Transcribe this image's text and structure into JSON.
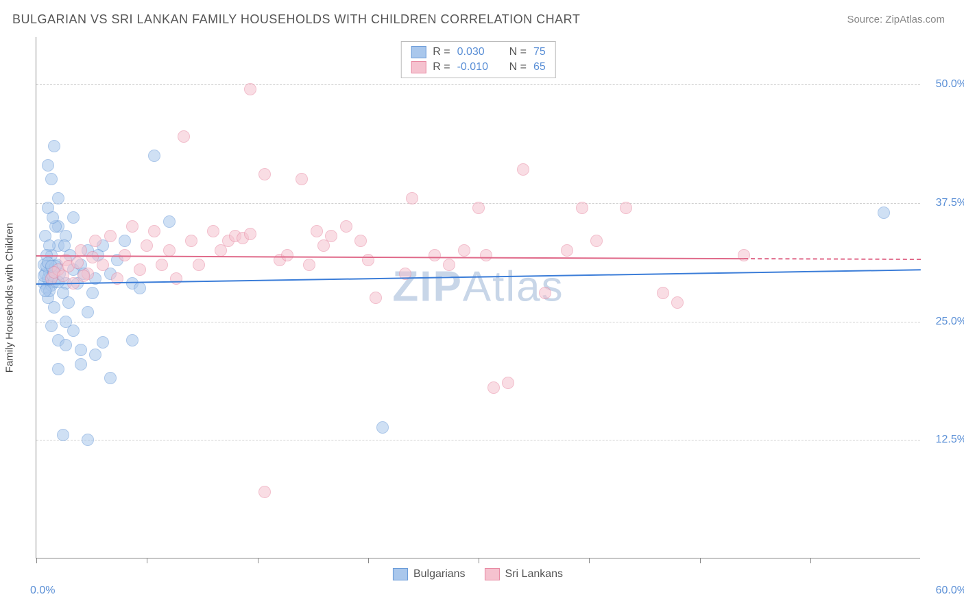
{
  "title": "BULGARIAN VS SRI LANKAN FAMILY HOUSEHOLDS WITH CHILDREN CORRELATION CHART",
  "source": "Source: ZipAtlas.com",
  "watermark_a": "ZIP",
  "watermark_b": "Atlas",
  "ylabel": "Family Households with Children",
  "chart": {
    "type": "scatter",
    "xlim": [
      0,
      60
    ],
    "ylim": [
      0,
      55
    ],
    "ytick_values": [
      12.5,
      25.0,
      37.5,
      50.0
    ],
    "ytick_labels": [
      "12.5%",
      "25.0%",
      "37.5%",
      "50.0%"
    ],
    "xtick_values": [
      0,
      7.5,
      15,
      22.5,
      30,
      37.5,
      45,
      52.5
    ],
    "xlabel_min": "0.0%",
    "xlabel_max": "60.0%",
    "grid_color": "#d0d0d0",
    "axis_color": "#888888",
    "background_color": "#ffffff",
    "tick_label_color": "#5a8fd6",
    "marker_radius": 9,
    "marker_opacity": 0.55,
    "series": [
      {
        "name": "Bulgarians",
        "color_fill": "#a9c7ec",
        "color_stroke": "#6a9bd8",
        "r_label": "R =",
        "r_value": "0.030",
        "n_label": "N =",
        "n_value": "75",
        "trend": {
          "x1": 0,
          "y1": 29.0,
          "x2": 60,
          "y2": 30.5,
          "color": "#3b7dd8"
        },
        "points": [
          [
            0.5,
            29
          ],
          [
            0.6,
            30
          ],
          [
            0.7,
            28.5
          ],
          [
            0.8,
            29.5
          ],
          [
            0.9,
            30.2
          ],
          [
            1.0,
            28.8
          ],
          [
            1.1,
            30.5
          ],
          [
            1.2,
            29.2
          ],
          [
            0.5,
            31
          ],
          [
            0.8,
            27.5
          ],
          [
            1.0,
            32
          ],
          [
            1.2,
            26.5
          ],
          [
            1.5,
            33
          ],
          [
            1.0,
            40
          ],
          [
            1.5,
            38
          ],
          [
            0.8,
            41.5
          ],
          [
            1.2,
            43.5
          ],
          [
            0.8,
            37
          ],
          [
            1.5,
            35
          ],
          [
            2.0,
            34
          ],
          [
            2.5,
            36
          ],
          [
            2.0,
            29
          ],
          [
            2.5,
            30.5
          ],
          [
            3.0,
            31
          ],
          [
            3.5,
            32.5
          ],
          [
            4.0,
            29.5
          ],
          [
            4.5,
            33
          ],
          [
            5.0,
            30
          ],
          [
            5.5,
            31.5
          ],
          [
            6.0,
            33.5
          ],
          [
            6.5,
            29
          ],
          [
            7.0,
            28.5
          ],
          [
            8.0,
            42.5
          ],
          [
            9.0,
            35.5
          ],
          [
            1.0,
            24.5
          ],
          [
            1.5,
            23
          ],
          [
            2.0,
            22.5
          ],
          [
            2.5,
            24
          ],
          [
            3.0,
            20.5
          ],
          [
            3.5,
            26
          ],
          [
            4.0,
            21.5
          ],
          [
            4.5,
            22.8
          ],
          [
            5.0,
            19
          ],
          [
            1.5,
            20
          ],
          [
            2.0,
            25
          ],
          [
            6.5,
            23
          ],
          [
            3.0,
            22
          ],
          [
            1.8,
            13
          ],
          [
            3.5,
            12.5
          ],
          [
            23.5,
            13.8
          ],
          [
            0.6,
            34
          ],
          [
            0.9,
            33
          ],
          [
            1.3,
            35
          ],
          [
            1.1,
            36
          ],
          [
            0.7,
            32
          ],
          [
            1.4,
            31
          ],
          [
            1.6,
            30
          ],
          [
            1.8,
            28
          ],
          [
            2.2,
            27
          ],
          [
            1.9,
            33
          ],
          [
            2.3,
            32
          ],
          [
            2.8,
            29
          ],
          [
            3.2,
            30
          ],
          [
            3.8,
            28
          ],
          [
            4.2,
            32
          ],
          [
            0.5,
            29.8
          ],
          [
            0.7,
            30.8
          ],
          [
            0.9,
            28.2
          ],
          [
            1.1,
            29.8
          ],
          [
            1.3,
            30.8
          ],
          [
            1.5,
            29.2
          ],
          [
            0.6,
            28.2
          ],
          [
            0.8,
            31.2
          ],
          [
            1.0,
            30.8
          ],
          [
            57.5,
            36.5
          ]
        ]
      },
      {
        "name": "Sri Lankans",
        "color_fill": "#f5c2cf",
        "color_stroke": "#e88aa3",
        "r_label": "R =",
        "r_value": "-0.010",
        "n_label": "N =",
        "n_value": "65",
        "trend": {
          "x1": 0,
          "y1": 32.0,
          "x2": 48,
          "y2": 31.7,
          "color": "#e06a8a",
          "dash_to_x": 60
        },
        "points": [
          [
            1.0,
            29.5
          ],
          [
            1.5,
            30.5
          ],
          [
            2.0,
            31.5
          ],
          [
            2.5,
            29
          ],
          [
            3.0,
            32.5
          ],
          [
            3.5,
            30
          ],
          [
            4.0,
            33.5
          ],
          [
            4.5,
            31
          ],
          [
            5.0,
            34
          ],
          [
            5.5,
            29.5
          ],
          [
            6.0,
            32
          ],
          [
            6.5,
            35
          ],
          [
            7.0,
            30.5
          ],
          [
            7.5,
            33
          ],
          [
            8.0,
            34.5
          ],
          [
            8.5,
            31
          ],
          [
            9.0,
            32.5
          ],
          [
            9.5,
            29.5
          ],
          [
            10.0,
            44.5
          ],
          [
            10.5,
            33.5
          ],
          [
            11.0,
            31
          ],
          [
            12.0,
            34.5
          ],
          [
            12.5,
            32.5
          ],
          [
            13.0,
            33.5
          ],
          [
            13.5,
            34
          ],
          [
            14.0,
            33.8
          ],
          [
            14.5,
            34.2
          ],
          [
            14.5,
            49.5
          ],
          [
            15.5,
            40.5
          ],
          [
            16.5,
            31.5
          ],
          [
            17.0,
            32
          ],
          [
            18.0,
            40
          ],
          [
            18.5,
            31
          ],
          [
            19.0,
            34.5
          ],
          [
            19.5,
            33
          ],
          [
            20.0,
            34
          ],
          [
            21.0,
            35
          ],
          [
            22.0,
            33.5
          ],
          [
            22.5,
            31.5
          ],
          [
            23.0,
            27.5
          ],
          [
            25.0,
            30
          ],
          [
            25.5,
            38
          ],
          [
            27.0,
            32
          ],
          [
            28.0,
            31
          ],
          [
            29.0,
            32.5
          ],
          [
            30.0,
            37
          ],
          [
            30.5,
            32
          ],
          [
            32.0,
            18.5
          ],
          [
            33.0,
            41
          ],
          [
            34.5,
            28
          ],
          [
            36.0,
            32.5
          ],
          [
            37.0,
            37
          ],
          [
            38.0,
            33.5
          ],
          [
            40.0,
            37
          ],
          [
            42.5,
            28
          ],
          [
            43.5,
            27
          ],
          [
            48.0,
            32
          ],
          [
            15.5,
            7
          ],
          [
            31.0,
            18
          ],
          [
            1.2,
            30.2
          ],
          [
            1.8,
            29.8
          ],
          [
            2.2,
            30.8
          ],
          [
            2.8,
            31.2
          ],
          [
            3.2,
            29.8
          ],
          [
            3.8,
            31.8
          ]
        ]
      }
    ]
  },
  "legend_bottom": [
    {
      "label": "Bulgarians",
      "fill": "#a9c7ec",
      "stroke": "#6a9bd8"
    },
    {
      "label": "Sri Lankans",
      "fill": "#f5c2cf",
      "stroke": "#e88aa3"
    }
  ]
}
